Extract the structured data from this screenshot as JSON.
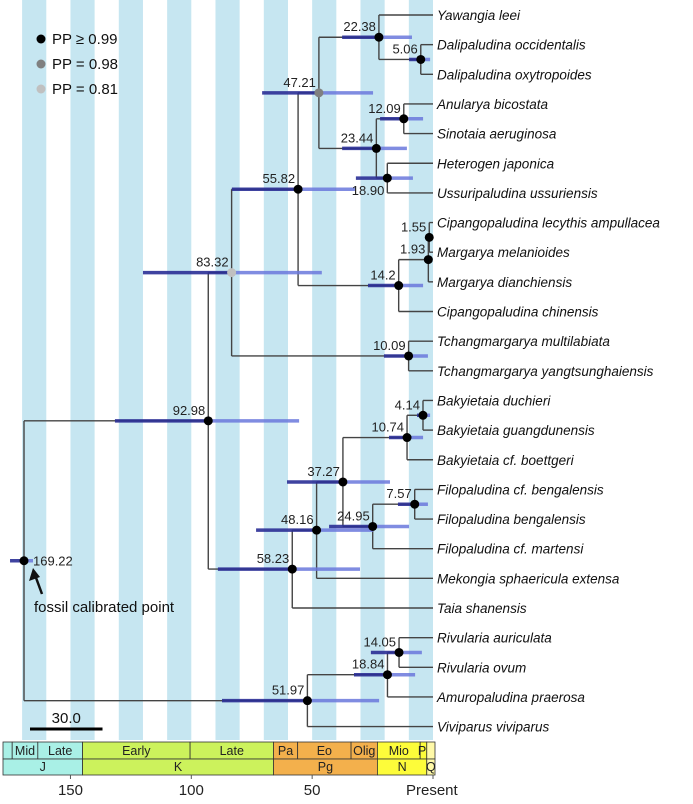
{
  "legend": [
    {
      "label": "PP ≥ 0.99",
      "color": "#000000"
    },
    {
      "label": "PP = 0.98",
      "color": "#808080"
    },
    {
      "label": "PP = 0.81",
      "color": "#c0c0c0"
    }
  ],
  "colors": {
    "stripe": "#c6e6f1",
    "branch": "#444444",
    "hpd_old": "#2b2f96",
    "hpd_young": "#6b78dc",
    "highlight_taxon": "#e8151b"
  },
  "annotation": "fossil calibrated point",
  "scale_bar": {
    "label": "30.0",
    "length_myr": 30
  },
  "axis": {
    "ticks": [
      {
        "age": 150,
        "label": "150"
      },
      {
        "age": 100,
        "label": "100"
      },
      {
        "age": 50,
        "label": "50"
      },
      {
        "age": 0,
        "label": "Present"
      }
    ]
  },
  "timescale": {
    "epochs": [
      {
        "label": "",
        "from": 178,
        "to": 174.1,
        "color": "#a9f0e6"
      },
      {
        "label": "Mid",
        "from": 174.1,
        "to": 163.5,
        "color": "#a9f0e6"
      },
      {
        "label": "Late",
        "from": 163.5,
        "to": 145,
        "color": "#a9f0e6"
      },
      {
        "label": "Early",
        "from": 145,
        "to": 100.5,
        "color": "#ccf25c"
      },
      {
        "label": "Late",
        "from": 100.5,
        "to": 66,
        "color": "#ccf25c"
      },
      {
        "label": "Pa",
        "from": 66,
        "to": 56,
        "color": "#f3b04c"
      },
      {
        "label": "Eo",
        "from": 56,
        "to": 33.9,
        "color": "#f3b04c"
      },
      {
        "label": "Olig",
        "from": 33.9,
        "to": 23,
        "color": "#f3b04c"
      },
      {
        "label": "Mio",
        "from": 23,
        "to": 5.3,
        "color": "#fdfc3a"
      },
      {
        "label": "Pl",
        "from": 5.3,
        "to": 2.58,
        "color": "#fdfc3a"
      },
      {
        "label": "",
        "from": 2.58,
        "to": 0,
        "color": "#fff9a8"
      }
    ],
    "periods": [
      {
        "label": "J",
        "from": 178,
        "to": 145,
        "color": "#a9f0e6"
      },
      {
        "label": "K",
        "from": 145,
        "to": 66,
        "color": "#ccf25c"
      },
      {
        "label": "Pg",
        "from": 66,
        "to": 23,
        "color": "#f3b04c"
      },
      {
        "label": "N",
        "from": 23,
        "to": 2.58,
        "color": "#fdfc3a"
      },
      {
        "label": "Q",
        "from": 2.58,
        "to": 0,
        "color": "#fff9a8"
      }
    ]
  },
  "tree": {
    "age": 169.22,
    "label": "169.22",
    "pp": "≥0.99",
    "hpd": [
      175,
      165.5
    ],
    "children": [
      {
        "age": 92.98,
        "label": "92.98",
        "pp": "≥0.99",
        "hpd": [
          131.6,
          55.4
        ],
        "children": [
          {
            "age": 83.32,
            "label": "83.32",
            "pp": "0.81",
            "hpd": [
              120,
              46
            ],
            "children": [
              {
                "age": 55.82,
                "label": "55.82",
                "pp": "≥0.99",
                "hpd": [
                  83.2,
                  32.3
                ],
                "children": [
                  {
                    "age": 47.21,
                    "label": "47.21",
                    "pp": "0.98",
                    "hpd": [
                      70.7,
                      24.8
                    ],
                    "children": [
                      {
                        "age": 22.38,
                        "label": "22.38",
                        "pp": "≥0.99",
                        "hpd": [
                          37.6,
                          8.7
                        ],
                        "children": [
                          {
                            "name": "Yawangia leei",
                            "highlight": true
                          },
                          {
                            "age": 5.06,
                            "label": "5.06",
                            "pp": "≥0.99",
                            "hpd": [
                              9.9,
                              1.2
                            ],
                            "children": [
                              {
                                "name": "Dalipaludina occidentalis"
                              },
                              {
                                "name": "Dalipaludina oxytropoides"
                              }
                            ]
                          }
                        ]
                      },
                      {
                        "age": 23.44,
                        "label": "23.44",
                        "pp": "≥0.99",
                        "hpd": [
                          37.6,
                          10.8
                        ],
                        "children": [
                          {
                            "age": 12.09,
                            "label": "12.09",
                            "pp": "≥0.99",
                            "hpd": [
                              21.9,
                              4.1
                            ],
                            "children": [
                              {
                                "name": "Anularya bicostata"
                              },
                              {
                                "name": "Sinotaia aeruginosa"
                              }
                            ]
                          },
                          {
                            "age": 18.9,
                            "label": "18.90",
                            "pp": "≥0.99",
                            "hpd": [
                              31.9,
                              8.3
                            ],
                            "children": [
                              {
                                "name": "Heterogen japonica"
                              },
                              {
                                "name": "Ussuripaludina ussuriensis"
                              }
                            ]
                          }
                        ]
                      }
                    ]
                  },
                  {
                    "age": 14.2,
                    "label": "14.2",
                    "pp": "≥0.99",
                    "hpd": [
                      26.9,
                      4.1
                    ],
                    "children": [
                      {
                        "age": 1.93,
                        "label": "1.93",
                        "pp": "≥0.99",
                        "hpd": [
                          2.6,
                          1.2
                        ],
                        "children": [
                          {
                            "age": 1.55,
                            "label": "1.55",
                            "pp": "≥0.99",
                            "hpd": [
                              2.1,
                              1.0
                            ],
                            "children": [
                              {
                                "name": "Cipangopaludina lecythis ampullacea"
                              },
                              {
                                "name": "Margarya melanioides"
                              }
                            ]
                          },
                          {
                            "name": "Margarya dianchiensis"
                          }
                        ]
                      },
                      {
                        "name": "Cipangopaludina chinensis"
                      }
                    ]
                  }
                ]
              },
              {
                "age": 10.09,
                "label": "10.09",
                "pp": "≥0.99",
                "hpd": [
                  20.3,
                  2.1
                ],
                "children": [
                  {
                    "name": "Tchangmargarya multilabiata"
                  },
                  {
                    "name": "Tchangmargarya yangtsunghaiensis"
                  }
                ]
              }
            ]
          },
          {
            "age": 58.23,
            "label": "58.23",
            "pp": "≥0.99",
            "hpd": [
              89,
              30.2
            ],
            "children": [
              {
                "age": 48.16,
                "label": "48.16",
                "pp": "≥0.99",
                "hpd": [
                  73.2,
                  24.8
                ],
                "children": [
                  {
                    "age": 37.27,
                    "label": "37.27",
                    "pp": "≥0.99",
                    "hpd": [
                      60.4,
                      17.8
                    ],
                    "children": [
                      {
                        "age": 10.74,
                        "label": "10.74",
                        "pp": "≥0.99",
                        "hpd": [
                          18.2,
                          4.1
                        ],
                        "children": [
                          {
                            "age": 4.14,
                            "label": "4.14",
                            "pp": "≥0.99",
                            "hpd": [
                              6.6,
                              1.2
                            ],
                            "children": [
                              {
                                "name": "Bakyietaia duchieri"
                              },
                              {
                                "name": "Bakyietaia guangdunensis"
                              }
                            ]
                          },
                          {
                            "name": "Bakyietaia cf. boettgeri"
                          }
                        ]
                      },
                      {
                        "age": 24.95,
                        "label": "24.95",
                        "pp": "≥0.99",
                        "hpd": [
                          43,
                          9.9
                        ],
                        "children": [
                          {
                            "age": 7.57,
                            "label": "7.57",
                            "pp": "≥0.99",
                            "hpd": [
                              14.5,
                              2.1
                            ],
                            "children": [
                              {
                                "name": "Filopaludina cf. bengalensis"
                              },
                              {
                                "name": "Filopaludina bengalensis"
                              }
                            ]
                          },
                          {
                            "name": "Filopaludina cf. martensi"
                          }
                        ]
                      }
                    ]
                  },
                  {
                    "name": "Mekongia sphaericula extensa"
                  }
                ]
              },
              {
                "name": "Taia shanensis"
              }
            ]
          }
        ]
      },
      {
        "age": 51.97,
        "label": "51.97",
        "pp": "≥0.99",
        "hpd": [
          87.3,
          22.3
        ],
        "children": [
          {
            "age": 18.84,
            "label": "18.84",
            "pp": "≥0.99",
            "hpd": [
              32.7,
              7.4
            ],
            "children": [
              {
                "age": 14.05,
                "label": "14.05",
                "pp": "≥0.99",
                "hpd": [
                  25.7,
                  4.6
                ],
                "children": [
                  {
                    "name": "Rivularia auriculata"
                  },
                  {
                    "name": "Rivularia ovum"
                  }
                ]
              },
              {
                "name": "Amuropaludina praerosa"
              }
            ]
          },
          {
            "name": "Viviparus viviparus"
          }
        ]
      }
    ]
  }
}
